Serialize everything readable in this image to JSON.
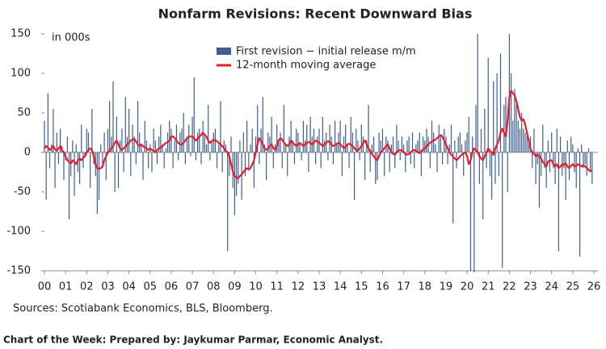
{
  "chart_data": {
    "type": "bar",
    "title": "Nonfarm Revisions: Recent Downward Bias",
    "unit_label": "in 000s",
    "source": "Sources: Scotiabank Economics, BLS, Bloomberg.",
    "categories": [
      "00",
      null,
      null,
      null,
      null,
      null,
      null,
      null,
      null,
      null,
      null,
      null,
      "01",
      null,
      null,
      null,
      null,
      null,
      null,
      null,
      null,
      null,
      null,
      null,
      "02",
      null,
      null,
      null,
      null,
      null,
      null,
      null,
      null,
      null,
      null,
      null,
      "03",
      null,
      null,
      null,
      null,
      null,
      null,
      null,
      null,
      null,
      null,
      null,
      "04",
      null,
      null,
      null,
      null,
      null,
      null,
      null,
      null,
      null,
      null,
      null,
      "05",
      null,
      null,
      null,
      null,
      null,
      null,
      null,
      null,
      null,
      null,
      null,
      "06",
      null,
      null,
      null,
      null,
      null,
      null,
      null,
      null,
      null,
      null,
      null,
      "07",
      null,
      null,
      null,
      null,
      null,
      null,
      null,
      null,
      null,
      null,
      null,
      "08",
      null,
      null,
      null,
      null,
      null,
      null,
      null,
      null,
      null,
      null,
      null,
      "09",
      null,
      null,
      null,
      null,
      null,
      null,
      null,
      null,
      null,
      null,
      null,
      "10",
      null,
      null,
      null,
      null,
      null,
      null,
      null,
      null,
      null,
      null,
      null,
      "11",
      null,
      null,
      null,
      null,
      null,
      null,
      null,
      null,
      null,
      null,
      null,
      "12",
      null,
      null,
      null,
      null,
      null,
      null,
      null,
      null,
      null,
      null,
      null,
      "13",
      null,
      null,
      null,
      null,
      null,
      null,
      null,
      null,
      null,
      null,
      null,
      "14",
      null,
      null,
      null,
      null,
      null,
      null,
      null,
      null,
      null,
      null,
      null,
      "15",
      null,
      null,
      null,
      null,
      null,
      null,
      null,
      null,
      null,
      null,
      null,
      "16",
      null,
      null,
      null,
      null,
      null,
      null,
      null,
      null,
      null,
      null,
      null,
      "17",
      null,
      null,
      null,
      null,
      null,
      null,
      null,
      null,
      null,
      null,
      null,
      "18",
      null,
      null,
      null,
      null,
      null,
      null,
      null,
      null,
      null,
      null,
      null,
      "19",
      null,
      null,
      null,
      null,
      null,
      null,
      null,
      null,
      null,
      null,
      null,
      "20",
      null,
      null,
      null,
      null,
      null,
      null,
      null,
      null,
      null,
      null,
      null,
      "21",
      null,
      null,
      null,
      null,
      null,
      null,
      null,
      null,
      null,
      null,
      null,
      "22",
      null,
      null,
      null,
      null,
      null,
      null,
      null,
      null,
      null,
      null,
      null,
      "23",
      null,
      null,
      null,
      null,
      null,
      null,
      null,
      null,
      null,
      null,
      null,
      "24",
      null,
      null,
      null,
      null,
      null,
      null,
      null,
      null,
      null,
      null,
      null,
      "25",
      null,
      null,
      null,
      null,
      null,
      null,
      null,
      null,
      null,
      null,
      null,
      "26"
    ],
    "series": [
      {
        "name": "First revision − initial release m/m",
        "color": "#3d5f8f",
        "type": "bar",
        "values": [
          40,
          -60,
          75,
          -20,
          10,
          55,
          -45,
          25,
          -15,
          30,
          8,
          -35,
          -10,
          20,
          -85,
          -30,
          15,
          -55,
          10,
          -25,
          -40,
          35,
          -20,
          -5,
          30,
          25,
          -45,
          55,
          -15,
          -30,
          -78,
          -60,
          10,
          -20,
          25,
          -35,
          30,
          65,
          20,
          90,
          -50,
          45,
          -45,
          15,
          30,
          -25,
          70,
          20,
          55,
          -30,
          35,
          20,
          -15,
          65,
          25,
          10,
          -35,
          40,
          15,
          -20,
          10,
          -25,
          30,
          15,
          -15,
          20,
          35,
          10,
          -20,
          5,
          25,
          40,
          30,
          -20,
          15,
          35,
          -10,
          25,
          30,
          50,
          -15,
          20,
          35,
          -5,
          45,
          95,
          -10,
          25,
          30,
          -15,
          40,
          20,
          10,
          60,
          -10,
          15,
          25,
          30,
          -20,
          10,
          65,
          -25,
          15,
          10,
          -125,
          -30,
          20,
          -45,
          -80,
          -55,
          -40,
          15,
          -60,
          25,
          -30,
          40,
          -20,
          10,
          30,
          -45,
          20,
          60,
          -15,
          30,
          70,
          10,
          -35,
          25,
          20,
          45,
          -20,
          10,
          35,
          15,
          25,
          -20,
          60,
          10,
          -30,
          20,
          40,
          15,
          -15,
          30,
          25,
          10,
          -10,
          40,
          15,
          35,
          -25,
          45,
          20,
          30,
          -15,
          20,
          30,
          -20,
          45,
          15,
          25,
          -10,
          35,
          20,
          -15,
          40,
          10,
          25,
          40,
          -30,
          20,
          35,
          10,
          -20,
          45,
          25,
          -60,
          30,
          15,
          -10,
          35,
          20,
          -35,
          15,
          60,
          -25,
          10,
          20,
          -40,
          -35,
          25,
          15,
          30,
          -30,
          20,
          15,
          -25,
          10,
          20,
          -20,
          35,
          15,
          -10,
          20,
          10,
          -25,
          15,
          20,
          -15,
          25,
          -20,
          10,
          15,
          25,
          -30,
          20,
          15,
          30,
          20,
          -20,
          40,
          25,
          10,
          -25,
          35,
          20,
          -15,
          30,
          20,
          -15,
          10,
          35,
          -90,
          15,
          -20,
          20,
          25,
          10,
          -30,
          15,
          25,
          45,
          -150,
          20,
          -152,
          60,
          150,
          -40,
          30,
          -85,
          55,
          -20,
          120,
          -30,
          -60,
          90,
          -40,
          100,
          -30,
          125,
          -146,
          60,
          70,
          -50,
          150,
          100,
          40,
          80,
          60,
          40,
          30,
          50,
          30,
          25,
          20,
          10,
          20,
          -20,
          30,
          -40,
          -15,
          -70,
          -30,
          35,
          -20,
          -45,
          15,
          -25,
          25,
          -20,
          -40,
          30,
          -125,
          20,
          -30,
          -20,
          -60,
          15,
          -35,
          20,
          10,
          -25,
          -45,
          5,
          -132,
          10,
          -20,
          -15,
          -30,
          5,
          -25,
          -40,
          null
        ]
      },
      {
        "name": "12-month moving average",
        "color": "#e0202e",
        "type": "line",
        "values": [
          5,
          8,
          6,
          3,
          5,
          8,
          4,
          2,
          5,
          8,
          3,
          0,
          -5,
          -10,
          -12,
          -14,
          -10,
          -12,
          -15,
          -10,
          -8,
          -10,
          -7,
          -5,
          0,
          3,
          5,
          3,
          -5,
          -15,
          -20,
          -21,
          -20,
          -18,
          -10,
          -5,
          0,
          2,
          5,
          8,
          12,
          15,
          10,
          5,
          3,
          5,
          7,
          10,
          12,
          15,
          16,
          17,
          14,
          10,
          8,
          10,
          8,
          6,
          5,
          3,
          5,
          3,
          2,
          0,
          3,
          5,
          6,
          8,
          10,
          12,
          13,
          15,
          20,
          20,
          18,
          15,
          12,
          10,
          10,
          12,
          15,
          18,
          20,
          20,
          20,
          18,
          15,
          17,
          20,
          22,
          25,
          22,
          20,
          15,
          12,
          14,
          16,
          15,
          14,
          12,
          10,
          8,
          5,
          2,
          0,
          -5,
          -15,
          -25,
          -30,
          -32,
          -33,
          -30,
          -28,
          -25,
          -22,
          -20,
          -22,
          -20,
          -15,
          -10,
          0,
          10,
          18,
          15,
          10,
          5,
          3,
          5,
          8,
          10,
          5,
          3,
          8,
          15,
          18,
          16,
          12,
          10,
          8,
          10,
          15,
          12,
          10,
          8,
          10,
          12,
          10,
          8,
          10,
          12,
          13,
          12,
          10,
          12,
          15,
          14,
          12,
          10,
          8,
          10,
          12,
          14,
          13,
          10,
          8,
          9,
          11,
          12,
          10,
          8,
          5,
          7,
          10,
          11,
          10,
          8,
          5,
          3,
          2,
          5,
          8,
          12,
          15,
          10,
          5,
          2,
          -2,
          -5,
          -8,
          -10,
          -5,
          0,
          2,
          5,
          8,
          10,
          5,
          0,
          -2,
          -3,
          0,
          2,
          3,
          2,
          0,
          -2,
          -3,
          -2,
          0,
          2,
          3,
          2,
          0,
          -1,
          2,
          3,
          5,
          8,
          10,
          12,
          14,
          15,
          16,
          18,
          20,
          22,
          20,
          15,
          10,
          5,
          0,
          -3,
          -5,
          -8,
          -10,
          -8,
          -5,
          -3,
          -1,
          0,
          -5,
          -15,
          -10,
          0,
          5,
          3,
          0,
          -5,
          -8,
          -10,
          -5,
          0,
          5,
          2,
          0,
          -3,
          5,
          10,
          15,
          25,
          30,
          25,
          20,
          40,
          70,
          78,
          75,
          72,
          65,
          55,
          45,
          40,
          42,
          35,
          25,
          15,
          5,
          0,
          -2,
          -5,
          -3,
          -5,
          -8,
          -12,
          -15,
          -18,
          -12,
          -10,
          -10,
          -15,
          -18,
          -15,
          -20,
          -18,
          -15,
          -16,
          -14,
          -18,
          -20,
          -17,
          -15,
          -18,
          -17,
          -15,
          -16,
          -18,
          -16,
          -18,
          -20,
          -22,
          -24,
          -23,
          null
        ]
      }
    ],
    "ylim": [
      -150,
      150
    ],
    "yticks": [
      -150,
      -100,
      -50,
      0,
      50,
      100,
      150
    ]
  },
  "footer": "Chart of the Week: Prepared by: Jaykumar Parmar, Economic Analyst."
}
